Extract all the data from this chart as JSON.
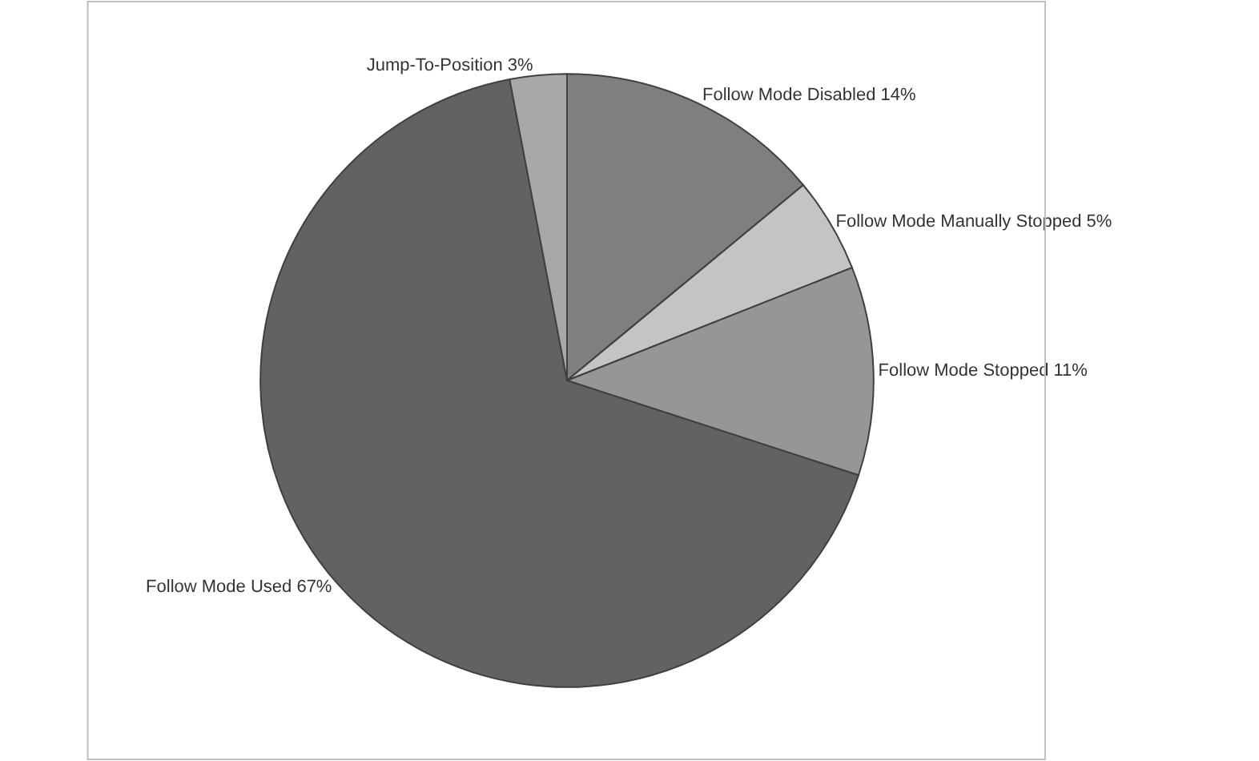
{
  "chart_data": {
    "type": "pie",
    "categories": [
      "Follow Mode Disabled",
      "Follow Mode Manually Stopped",
      "Follow Mode Stopped",
      "Follow Mode Used",
      "Jump-To-Position"
    ],
    "values": [
      14,
      5,
      11,
      67,
      3
    ],
    "value_labels": [
      "14%",
      "5%",
      "11%",
      "67%",
      "3%"
    ],
    "colors": [
      "#7f7f7f",
      "#c4c4c4",
      "#969696",
      "#626262",
      "#a8a8a8"
    ],
    "legend": false
  }
}
